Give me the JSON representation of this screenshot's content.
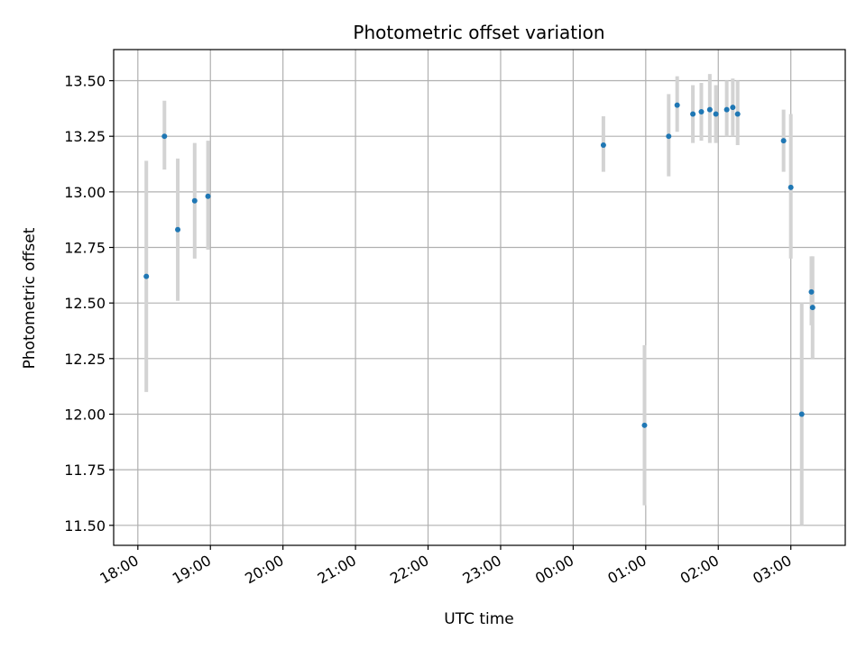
{
  "chart_data": {
    "type": "scatter",
    "title": "Photometric offset variation",
    "xlabel": "UTC time",
    "ylabel": "Photometric offset",
    "x_unit": "UTC time (first day 18:00 through next day 03:00)",
    "xlim": [
      "17:40",
      "03:45"
    ],
    "ylim": [
      11.41,
      13.64
    ],
    "grid": true,
    "x_ticks": [
      "18:00",
      "19:00",
      "20:00",
      "21:00",
      "22:00",
      "23:00",
      "00:00",
      "01:00",
      "02:00",
      "03:00"
    ],
    "y_ticks": [
      "11.50",
      "11.75",
      "12.00",
      "12.25",
      "12.50",
      "12.75",
      "13.00",
      "13.25",
      "13.50"
    ],
    "point_color": "#1f77b4",
    "errorbar_color": "#d3d3d3",
    "points": [
      {
        "time": "18:07",
        "y": 12.62,
        "ylo": 12.1,
        "yhi": 13.14
      },
      {
        "time": "18:22",
        "y": 13.25,
        "ylo": 13.1,
        "yhi": 13.41
      },
      {
        "time": "18:33",
        "y": 12.83,
        "ylo": 12.51,
        "yhi": 13.15
      },
      {
        "time": "18:47",
        "y": 12.96,
        "ylo": 12.7,
        "yhi": 13.22
      },
      {
        "time": "18:58",
        "y": 12.98,
        "ylo": 12.74,
        "yhi": 13.23
      },
      {
        "time": "00:25",
        "y": 13.21,
        "ylo": 13.09,
        "yhi": 13.34
      },
      {
        "time": "00:59",
        "y": 11.95,
        "ylo": 11.59,
        "yhi": 12.31
      },
      {
        "time": "01:19",
        "y": 13.25,
        "ylo": 13.07,
        "yhi": 13.44
      },
      {
        "time": "01:26",
        "y": 13.39,
        "ylo": 13.27,
        "yhi": 13.52
      },
      {
        "time": "01:39",
        "y": 13.35,
        "ylo": 13.22,
        "yhi": 13.48
      },
      {
        "time": "01:46",
        "y": 13.36,
        "ylo": 13.23,
        "yhi": 13.49
      },
      {
        "time": "01:53",
        "y": 13.37,
        "ylo": 13.22,
        "yhi": 13.53
      },
      {
        "time": "01:58",
        "y": 13.35,
        "ylo": 13.22,
        "yhi": 13.48
      },
      {
        "time": "02:07",
        "y": 13.37,
        "ylo": 13.25,
        "yhi": 13.5
      },
      {
        "time": "02:12",
        "y": 13.38,
        "ylo": 13.25,
        "yhi": 13.51
      },
      {
        "time": "02:16",
        "y": 13.35,
        "ylo": 13.21,
        "yhi": 13.5
      },
      {
        "time": "02:54",
        "y": 13.23,
        "ylo": 13.09,
        "yhi": 13.37
      },
      {
        "time": "03:00",
        "y": 13.02,
        "ylo": 12.7,
        "yhi": 13.35
      },
      {
        "time": "03:09",
        "y": 12.0,
        "ylo": 11.5,
        "yhi": 12.5
      },
      {
        "time": "03:17",
        "y": 12.55,
        "ylo": 12.4,
        "yhi": 12.71
      },
      {
        "time": "03:18",
        "y": 12.48,
        "ylo": 12.25,
        "yhi": 12.71
      }
    ]
  }
}
